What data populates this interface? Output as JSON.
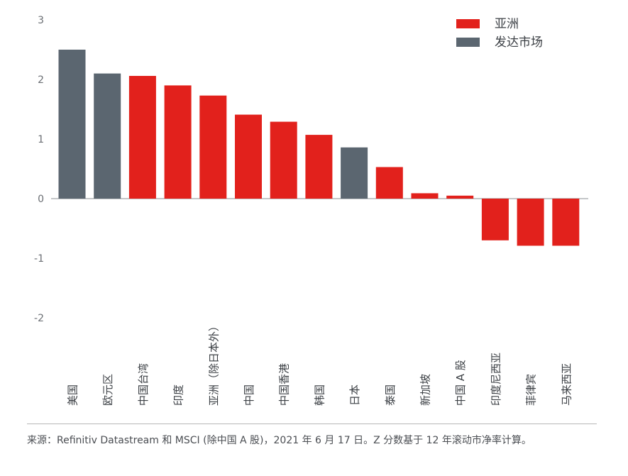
{
  "chart_data": {
    "type": "bar",
    "categories": [
      "美国",
      "欧元区",
      "中国台湾",
      "印度",
      "亚洲（除日本外）",
      "中国",
      "中国香港",
      "韩国",
      "日本",
      "泰国",
      "新加坡",
      "中国 A 股",
      "印度尼西亚",
      "菲律宾",
      "马来西亚"
    ],
    "values": [
      2.5,
      2.1,
      2.06,
      1.9,
      1.73,
      1.41,
      1.29,
      1.07,
      0.86,
      0.53,
      0.09,
      0.05,
      -0.7,
      -0.79,
      -0.79
    ],
    "groups": [
      "发达市场",
      "发达市场",
      "亚洲",
      "亚洲",
      "亚洲",
      "亚洲",
      "亚洲",
      "亚洲",
      "发达市场",
      "亚洲",
      "亚洲",
      "亚洲",
      "亚洲",
      "亚洲",
      "亚洲"
    ],
    "ylim": [
      -2,
      3
    ],
    "yticks": [
      3,
      2,
      1,
      0,
      -1,
      -2
    ],
    "grid": false,
    "legend": {
      "position": "top-right",
      "items": [
        {
          "name": "亚洲",
          "color": "#e2211c"
        },
        {
          "name": "发达市场",
          "color": "#5b6670"
        }
      ]
    }
  },
  "source_note": "来源：Refinitiv Datastream 和 MSCI (除中国 A 股)，2021 年 6 月 17 日。Z 分数基于 12 年滚动市净率计算。"
}
